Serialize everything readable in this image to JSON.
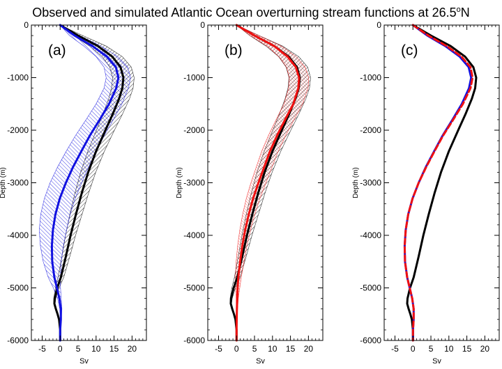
{
  "title": {
    "text": "Observed and simulated Atlantic Ocean overturning stream functions at 26.5",
    "superscript": "o",
    "suffix": "N"
  },
  "chart_data": [
    {
      "type": "line",
      "panel_label": "(a)",
      "xlabel": "Sv",
      "ylabel": "Depth (m)",
      "xlim": [
        -8,
        24
      ],
      "ylim": [
        -6000,
        0
      ],
      "xticks": [
        -5,
        0,
        5,
        10,
        15,
        20
      ],
      "yticks": [
        0,
        -1000,
        -2000,
        -3000,
        -4000,
        -5000,
        -6000
      ],
      "series": [
        {
          "color": "#000000",
          "style": "solid",
          "y": [
            0,
            -200,
            -400,
            -600,
            -800,
            -1000,
            -1200,
            -1400,
            -1700,
            -2000,
            -2400,
            -2800,
            -3200,
            -3600,
            -4000,
            -4400,
            -4800,
            -5000,
            -5200,
            -5300,
            -5400,
            -5500,
            -5600,
            -5800,
            -6000
          ],
          "x": [
            0,
            5,
            10.5,
            14.5,
            16.8,
            17.6,
            17.3,
            16.4,
            14.6,
            12.6,
            10,
            7.8,
            6,
            4.4,
            2.9,
            1.6,
            0.2,
            -0.8,
            -1.5,
            -1.6,
            -1.2,
            -0.7,
            -0.3,
            0,
            0
          ],
          "band": [
            0,
            1.3,
            2.3,
            2.8,
            3,
            3,
            3,
            2.9,
            2.7,
            2.5,
            2.3,
            2.1,
            1.9,
            1.7,
            1.4,
            1.1,
            0.8,
            0.5,
            0.3,
            0.2,
            0.2,
            0.1,
            0.05,
            0,
            0
          ]
        },
        {
          "color": "#1010e0",
          "style": "solid",
          "y": [
            0,
            -200,
            -400,
            -600,
            -800,
            -1000,
            -1200,
            -1500,
            -1800,
            -2100,
            -2400,
            -2700,
            -3000,
            -3300,
            -3600,
            -3900,
            -4200,
            -4500,
            -4800,
            -5000,
            -5200,
            -5400,
            -5600,
            -5800,
            -6000
          ],
          "x": [
            0,
            4,
            9,
            13,
            15.5,
            16.2,
            15.6,
            13.6,
            11,
            8.3,
            5.9,
            3.6,
            1.6,
            -0.1,
            -1.3,
            -2,
            -2.3,
            -2.2,
            -1.6,
            -0.9,
            -0.2,
            0.2,
            0.2,
            0,
            0
          ],
          "band": [
            0,
            1.4,
            2.4,
            3,
            3.3,
            3.4,
            3.4,
            3.6,
            3.8,
            4,
            4.2,
            4.3,
            4.4,
            4.3,
            4.1,
            3.8,
            3.2,
            2.5,
            1.7,
            1,
            0.5,
            0.3,
            0.1,
            0,
            0
          ]
        }
      ]
    },
    {
      "type": "line",
      "panel_label": "(b)",
      "xlabel": "Sv",
      "ylabel": "Depth (m)",
      "xlim": [
        -8,
        24
      ],
      "ylim": [
        -6000,
        0
      ],
      "xticks": [
        -5,
        0,
        5,
        10,
        15,
        20
      ],
      "yticks": [
        0,
        -1000,
        -2000,
        -3000,
        -4000,
        -5000,
        -6000
      ],
      "series": [
        {
          "color": "#000000",
          "style": "solid",
          "y": [
            0,
            -200,
            -400,
            -600,
            -800,
            -1000,
            -1200,
            -1400,
            -1700,
            -2000,
            -2400,
            -2800,
            -3200,
            -3600,
            -4000,
            -4400,
            -4800,
            -5000,
            -5200,
            -5300,
            -5400,
            -5500,
            -5600,
            -5800,
            -6000
          ],
          "x": [
            0,
            5,
            10.5,
            14.5,
            16.8,
            17.6,
            17.3,
            16.4,
            14.6,
            12.6,
            10,
            7.8,
            6,
            4.4,
            2.9,
            1.6,
            0.2,
            -0.8,
            -1.5,
            -1.6,
            -1.2,
            -0.7,
            -0.3,
            0,
            0
          ],
          "band": [
            0,
            1.3,
            2.3,
            2.8,
            3,
            3,
            3,
            2.9,
            2.7,
            2.5,
            2.3,
            2.1,
            1.9,
            1.7,
            1.4,
            1.1,
            0.8,
            0.5,
            0.3,
            0.2,
            0.2,
            0.1,
            0.05,
            0,
            0
          ]
        },
        {
          "color": "#f01010",
          "style": "solid",
          "y": [
            0,
            -200,
            -400,
            -600,
            -800,
            -1000,
            -1200,
            -1500,
            -1800,
            -2100,
            -2400,
            -2700,
            -3000,
            -3300,
            -3600,
            -3900,
            -4200,
            -4500,
            -4800,
            -5000,
            -5200,
            -5400,
            -5600,
            -5800,
            -6000
          ],
          "x": [
            0,
            5,
            10.5,
            14.2,
            16.5,
            17.4,
            17.2,
            15.8,
            13.5,
            11.3,
            9.3,
            7.7,
            6.1,
            4.6,
            3.4,
            2.4,
            1.6,
            1,
            0.5,
            0.3,
            0.2,
            0.1,
            0.05,
            0,
            0
          ],
          "band": [
            0,
            1.2,
            2,
            2.4,
            2.6,
            2.7,
            2.7,
            2.6,
            2.5,
            2.4,
            2.3,
            2.2,
            2.1,
            1.9,
            1.7,
            1.5,
            1.3,
            1.1,
            0.8,
            0.6,
            0.3,
            0.2,
            0.1,
            0,
            0
          ]
        }
      ]
    },
    {
      "type": "line",
      "panel_label": "(c)",
      "xlabel": "Sv",
      "ylabel": "Depth (m)",
      "xlim": [
        -8,
        24
      ],
      "ylim": [
        -6000,
        0
      ],
      "xticks": [
        -5,
        0,
        5,
        10,
        15,
        20
      ],
      "yticks": [
        0,
        -1000,
        -2000,
        -3000,
        -4000,
        -5000,
        -6000
      ],
      "series": [
        {
          "color": "#000000",
          "style": "solid",
          "y": [
            0,
            -200,
            -400,
            -600,
            -800,
            -1000,
            -1200,
            -1400,
            -1700,
            -2000,
            -2400,
            -2800,
            -3200,
            -3600,
            -4000,
            -4400,
            -4800,
            -5000,
            -5200,
            -5300,
            -5400,
            -5500,
            -5600,
            -5800,
            -6000
          ],
          "x": [
            0,
            5,
            10.5,
            14.5,
            16.8,
            17.6,
            17.3,
            16.4,
            14.6,
            12.6,
            10,
            7.8,
            6,
            4.4,
            2.9,
            1.6,
            0.2,
            -0.8,
            -1.5,
            -1.6,
            -1.2,
            -0.7,
            -0.3,
            0,
            0
          ]
        },
        {
          "color": "#1010e0",
          "style": "solid",
          "y": [
            0,
            -200,
            -400,
            -600,
            -800,
            -1000,
            -1200,
            -1500,
            -1800,
            -2100,
            -2400,
            -2700,
            -3000,
            -3300,
            -3600,
            -3900,
            -4200,
            -4500,
            -4800,
            -5000,
            -5200,
            -5400,
            -5600,
            -5800,
            -6000
          ],
          "x": [
            0,
            4,
            9,
            13,
            15.5,
            16.2,
            15.6,
            13.6,
            11,
            8.3,
            5.9,
            3.6,
            1.6,
            -0.1,
            -1.3,
            -2,
            -2.3,
            -2.2,
            -1.6,
            -0.9,
            -0.2,
            0.2,
            0.2,
            0,
            0
          ]
        },
        {
          "color": "#f01010",
          "style": "dashed",
          "y": [
            0,
            -200,
            -400,
            -600,
            -800,
            -1000,
            -1200,
            -1500,
            -1800,
            -2100,
            -2400,
            -2700,
            -3000,
            -3300,
            -3600,
            -3900,
            -4200,
            -4500,
            -4800,
            -5000,
            -5200,
            -5400,
            -5600,
            -5800,
            -6000
          ],
          "x": [
            0,
            4.3,
            9.4,
            13.5,
            16,
            16.6,
            16,
            13.9,
            11.2,
            8.4,
            6,
            3.7,
            1.6,
            -0.1,
            -1.3,
            -2,
            -2.3,
            -2.2,
            -1.6,
            -0.9,
            -0.2,
            0.2,
            0.2,
            0,
            0
          ]
        }
      ]
    }
  ]
}
